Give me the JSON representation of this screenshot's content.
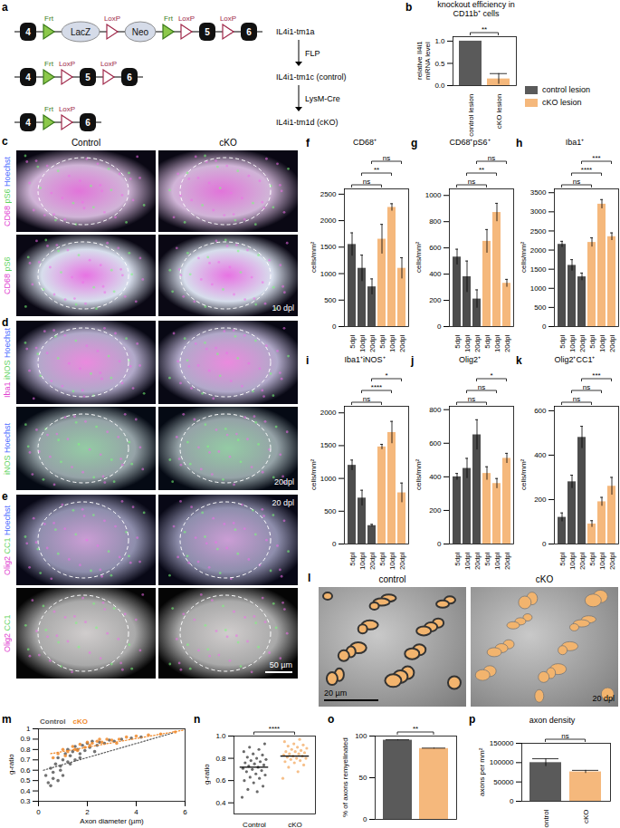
{
  "diagram": {
    "panel": "a",
    "rows": [
      {
        "name": "IL4i1-tm1a",
        "elements": [
          {
            "kind": "exon",
            "label": "4"
          },
          {
            "kind": "frt",
            "label": "Frt"
          },
          {
            "kind": "cassette",
            "label": "LacZ"
          },
          {
            "kind": "loxp",
            "label": "LoxP"
          },
          {
            "kind": "cassette",
            "label": "Neo"
          },
          {
            "kind": "frt",
            "label": "Frt"
          },
          {
            "kind": "loxp",
            "label": "LoxP"
          },
          {
            "kind": "exon",
            "label": "5"
          },
          {
            "kind": "loxp",
            "label": "LoxP"
          },
          {
            "kind": "exon",
            "label": "6"
          }
        ]
      },
      {
        "name": "IL4i1-tm1c (control)",
        "step": "FLP",
        "elements": [
          {
            "kind": "exon",
            "label": "4"
          },
          {
            "kind": "frt",
            "label": "Frt"
          },
          {
            "kind": "loxp",
            "label": "LoxP"
          },
          {
            "kind": "exon",
            "label": "5"
          },
          {
            "kind": "loxp",
            "label": "LoxP"
          },
          {
            "kind": "exon",
            "label": "6"
          }
        ]
      },
      {
        "name": "IL4i1-tm1d (cKO)",
        "step": "LysM-Cre",
        "elements": [
          {
            "kind": "exon",
            "label": "4"
          },
          {
            "kind": "frt",
            "label": "Frt"
          },
          {
            "kind": "loxp",
            "label": "LoxP"
          },
          {
            "kind": "exon",
            "label": "6"
          }
        ]
      }
    ]
  },
  "images": [
    {
      "panel": "c",
      "columns": [
        "Control",
        "cKO"
      ],
      "rows": [
        {
          "channels": [
            {
              "text": "CD68",
              "color": "#e040d0"
            },
            {
              "text": "pS6",
              "color": "#5fd35f"
            },
            {
              "text": "Hoechst",
              "color": "#4a6cff"
            }
          ]
        },
        {
          "channels": [
            {
              "text": "CD68",
              "color": "#e040d0"
            },
            {
              "text": "pS6",
              "color": "#5fd35f"
            }
          ],
          "annotation": "10 dpl"
        }
      ]
    },
    {
      "panel": "d",
      "rows": [
        {
          "channels": [
            {
              "text": "Iba1",
              "color": "#e040d0"
            },
            {
              "text": "iNOS",
              "color": "#5fd35f"
            },
            {
              "text": "Hoechst",
              "color": "#4a6cff"
            }
          ]
        },
        {
          "channels": [
            {
              "text": "iNOS",
              "color": "#5fd35f"
            },
            {
              "text": "Hoechst",
              "color": "#4a6cff"
            }
          ],
          "annotation": "20dpl"
        }
      ]
    },
    {
      "panel": "e",
      "rows": [
        {
          "channels": [
            {
              "text": "Olig2",
              "color": "#e040d0"
            },
            {
              "text": "CC1",
              "color": "#5fd35f"
            },
            {
              "text": "Hoechst",
              "color": "#4a6cff"
            }
          ],
          "annotation": "20 dpl"
        },
        {
          "channels": [
            {
              "text": "Olig2",
              "color": "#e040d0"
            },
            {
              "text": "CC1",
              "color": "#5fd35f"
            }
          ],
          "scale_bar": "50 µm"
        }
      ]
    },
    {
      "panel": "l",
      "columns": [
        "control",
        "cKO"
      ],
      "scale_bar": "20 µm",
      "annotation": "20 dpl"
    }
  ],
  "chart_data": [
    {
      "panel": "b",
      "type": "bar",
      "title": "knockout efficiency in CD11b⁺ cells",
      "y_label": "relative Il4i1 mRNA level",
      "categories": [
        "control lesion",
        "cKO lesion"
      ],
      "values": [
        1.0,
        0.15
      ],
      "errors": [
        0,
        0.12
      ],
      "colors": [
        "#5a5a5a",
        "#f5b87c"
      ],
      "ylim": [
        0,
        1.1
      ],
      "yticks": [
        {
          "value": 0,
          "label": "0.0"
        },
        {
          "value": 0.5,
          "label": "0.5"
        },
        {
          "value": 1,
          "label": "1.0"
        }
      ],
      "comparisons": [
        {
          "from": 0,
          "to": 1,
          "label": "**"
        }
      ],
      "legend": "right"
    },
    {
      "panel": "f",
      "type": "bar",
      "title": "CD68⁺",
      "y_label": "cells/mm²",
      "categories": [
        "5dpl",
        "10dpl",
        "20dpl",
        "5dpl",
        "10dpl",
        "20dpl"
      ],
      "values": [
        1550,
        1100,
        750,
        1650,
        2250,
        1100
      ],
      "errors": [
        220,
        250,
        150,
        280,
        70,
        200
      ],
      "colors": [
        "#4d4d4d",
        "#4d4d4d",
        "#4d4d4d",
        "#f5b87c",
        "#f5b87c",
        "#f5b87c"
      ],
      "ylim": [
        0,
        2600
      ],
      "yticks": [
        0,
        500,
        1000,
        1500,
        2000,
        2500
      ],
      "comparisons": [
        {
          "from": 0,
          "to": 3,
          "label": "ns"
        },
        {
          "from": 1,
          "to": 4,
          "label": "**"
        },
        {
          "from": 2,
          "to": 5,
          "label": "ns"
        }
      ]
    },
    {
      "panel": "g",
      "type": "bar",
      "title": "CD68⁺pS6⁺",
      "y_label": "cells/mm²",
      "categories": [
        "5dpl",
        "10dpl",
        "20dpl",
        "5dpl",
        "10dpl",
        "20dpl"
      ],
      "values": [
        530,
        380,
        210,
        650,
        870,
        330
      ],
      "errors": [
        60,
        120,
        70,
        90,
        70,
        30
      ],
      "colors": [
        "#4d4d4d",
        "#4d4d4d",
        "#4d4d4d",
        "#f5b87c",
        "#f5b87c",
        "#f5b87c"
      ],
      "ylim": [
        0,
        1050
      ],
      "yticks": [
        0,
        200,
        400,
        600,
        800,
        1000
      ],
      "comparisons": [
        {
          "from": 0,
          "to": 3,
          "label": "ns"
        },
        {
          "from": 1,
          "to": 4,
          "label": "**"
        },
        {
          "from": 2,
          "to": 5,
          "label": "ns"
        }
      ]
    },
    {
      "panel": "h",
      "type": "bar",
      "title": "Iba1⁺",
      "y_label": "cells/mm²",
      "categories": [
        "5dpl",
        "10dpl",
        "20dpl",
        "5dpl",
        "10dpl",
        "20dpl"
      ],
      "values": [
        2150,
        1600,
        1300,
        2200,
        3200,
        2350
      ],
      "errors": [
        80,
        150,
        100,
        120,
        120,
        100
      ],
      "colors": [
        "#4d4d4d",
        "#4d4d4d",
        "#4d4d4d",
        "#f5b87c",
        "#f5b87c",
        "#f5b87c"
      ],
      "ylim": [
        0,
        3600
      ],
      "yticks": [
        0,
        500,
        1000,
        1500,
        2000,
        2500,
        3000,
        3500
      ],
      "comparisons": [
        {
          "from": 0,
          "to": 3,
          "label": "ns"
        },
        {
          "from": 1,
          "to": 4,
          "label": "****"
        },
        {
          "from": 2,
          "to": 5,
          "label": "***"
        }
      ]
    },
    {
      "panel": "i",
      "type": "bar",
      "title": "Iba1⁺iNOS⁺",
      "y_label": "cells/mm²",
      "categories": [
        "5dpl",
        "10dpl",
        "20dpl",
        "5dpl",
        "10dpl",
        "20dpl"
      ],
      "values": [
        1200,
        700,
        280,
        1480,
        1700,
        780
      ],
      "errors": [
        80,
        120,
        20,
        40,
        170,
        150
      ],
      "colors": [
        "#4d4d4d",
        "#4d4d4d",
        "#4d4d4d",
        "#f5b87c",
        "#f5b87c",
        "#f5b87c"
      ],
      "ylim": [
        0,
        2100
      ],
      "yticks": [
        0,
        500,
        1000,
        1500,
        2000
      ],
      "comparisons": [
        {
          "from": 0,
          "to": 3,
          "label": "ns"
        },
        {
          "from": 1,
          "to": 4,
          "label": "****"
        },
        {
          "from": 2,
          "to": 5,
          "label": "*"
        }
      ]
    },
    {
      "panel": "j",
      "type": "bar",
      "title": "Olig2⁺",
      "y_label": "cells/mm²",
      "categories": [
        "5dpl",
        "10dpl",
        "20dpl",
        "5dpl",
        "10dpl",
        "20dpl"
      ],
      "values": [
        400,
        450,
        650,
        420,
        360,
        510
      ],
      "errors": [
        20,
        60,
        90,
        40,
        30,
        30
      ],
      "colors": [
        "#4d4d4d",
        "#4d4d4d",
        "#4d4d4d",
        "#f5b87c",
        "#f5b87c",
        "#f5b87c"
      ],
      "ylim": [
        0,
        820
      ],
      "yticks": [
        0,
        200,
        400,
        600,
        800
      ],
      "comparisons": [
        {
          "from": 0,
          "to": 3,
          "label": "ns"
        },
        {
          "from": 1,
          "to": 4,
          "label": "ns"
        },
        {
          "from": 2,
          "to": 5,
          "label": "*"
        }
      ]
    },
    {
      "panel": "k",
      "type": "bar",
      "title": "Olig2⁺CC1⁺",
      "y_label": "cells/mm²",
      "categories": [
        "5dpl",
        "10dpl",
        "20dpl",
        "5dpl",
        "10dpl",
        "20dpl"
      ],
      "values": [
        120,
        280,
        480,
        90,
        190,
        260
      ],
      "errors": [
        20,
        30,
        50,
        15,
        20,
        40
      ],
      "colors": [
        "#4d4d4d",
        "#4d4d4d",
        "#4d4d4d",
        "#f5b87c",
        "#f5b87c",
        "#f5b87c"
      ],
      "ylim": [
        0,
        620
      ],
      "yticks": [
        0,
        200,
        400,
        600
      ],
      "comparisons": [
        {
          "from": 0,
          "to": 3,
          "label": "ns"
        },
        {
          "from": 1,
          "to": 4,
          "label": "ns"
        },
        {
          "from": 2,
          "to": 5,
          "label": "***"
        }
      ]
    },
    {
      "panel": "m",
      "type": "scatter",
      "x_label": "Axon diameter (µm)",
      "y_label": "g-ratio",
      "xlim": [
        0,
        6
      ],
      "xticks": [
        0,
        2,
        4,
        6
      ],
      "ylim": [
        0.3,
        1
      ],
      "yticks": [
        0.3,
        0.4,
        0.5,
        0.6,
        0.7,
        0.8,
        0.9,
        1
      ],
      "legend": "top-left",
      "series": [
        {
          "name": "Control",
          "color": "#5a5a5a",
          "marker": "circle",
          "line_style": "dotted",
          "x": [
            0.3,
            0.4,
            0.5,
            0.5,
            0.6,
            0.7,
            0.8,
            0.8,
            0.9,
            1.0,
            1.0,
            1.1,
            1.2,
            1.2,
            1.3,
            1.4,
            1.5,
            1.5,
            1.6,
            1.7,
            1.8,
            1.9,
            2.0,
            2.1,
            2.2,
            2.4,
            2.5,
            2.7,
            2.9,
            3.1,
            3.4,
            3.8,
            4.2,
            0.6,
            0.9,
            1.3,
            1.7,
            2.3
          ],
          "y": [
            0.55,
            0.48,
            0.62,
            0.45,
            0.58,
            0.66,
            0.5,
            0.72,
            0.64,
            0.7,
            0.55,
            0.76,
            0.68,
            0.8,
            0.74,
            0.78,
            0.7,
            0.83,
            0.8,
            0.76,
            0.84,
            0.79,
            0.86,
            0.82,
            0.88,
            0.84,
            0.87,
            0.86,
            0.89,
            0.88,
            0.9,
            0.91,
            0.92,
            0.52,
            0.6,
            0.66,
            0.72,
            0.78
          ],
          "fit_x": [
            0.2,
            5.5
          ],
          "fit_y": [
            0.6,
            0.96
          ]
        },
        {
          "name": "cKO",
          "color": "#f08a2c",
          "marker": "circle",
          "line_style": "dotted",
          "x": [
            0.6,
            0.8,
            1.0,
            1.2,
            1.4,
            1.5,
            1.7,
            1.9,
            2.0,
            2.2,
            2.4,
            2.6,
            2.8,
            3.0,
            3.3,
            3.6,
            4.0,
            4.5,
            5.0,
            5.6,
            1.1,
            1.6,
            2.1,
            2.5,
            3.2
          ],
          "y": [
            0.72,
            0.76,
            0.8,
            0.78,
            0.83,
            0.8,
            0.85,
            0.82,
            0.87,
            0.86,
            0.88,
            0.87,
            0.9,
            0.89,
            0.9,
            0.92,
            0.93,
            0.94,
            0.95,
            0.97,
            0.74,
            0.79,
            0.84,
            0.9,
            0.86
          ],
          "fit_x": [
            0.5,
            6
          ],
          "fit_y": [
            0.76,
            0.99
          ]
        }
      ]
    },
    {
      "panel": "n",
      "type": "strip",
      "y_label": "g-ratio",
      "categories": [
        "Control",
        "cKO"
      ],
      "colors": [
        "#5a5a5a",
        "#f5b87c"
      ],
      "points": [
        [
          0.45,
          0.5,
          0.52,
          0.55,
          0.58,
          0.6,
          0.62,
          0.63,
          0.65,
          0.66,
          0.68,
          0.69,
          0.7,
          0.71,
          0.72,
          0.73,
          0.74,
          0.75,
          0.76,
          0.77,
          0.78,
          0.79,
          0.8,
          0.81,
          0.83,
          0.84,
          0.86,
          0.88,
          0.9,
          0.93
        ],
        [
          0.62,
          0.68,
          0.72,
          0.74,
          0.76,
          0.77,
          0.78,
          0.79,
          0.8,
          0.8,
          0.81,
          0.82,
          0.82,
          0.83,
          0.84,
          0.84,
          0.85,
          0.86,
          0.86,
          0.87,
          0.88,
          0.89,
          0.9,
          0.91,
          0.92,
          0.93,
          0.95,
          0.97
        ]
      ],
      "values": [
        0.72,
        0.82
      ],
      "ylim": [
        0.3,
        1
      ],
      "yticks": [
        0.4,
        0.6,
        0.8,
        {
          "value": 1,
          "label": "1.0"
        }
      ],
      "comparisons": [
        {
          "from": 0,
          "to": 1,
          "label": "****"
        }
      ]
    },
    {
      "panel": "o",
      "type": "bar",
      "y_label": "% of axons remyelinated",
      "categories": [
        null,
        null
      ],
      "values": [
        95,
        85
      ],
      "errors": [
        0.5,
        0.5
      ],
      "colors": [
        "#5a5a5a",
        "#f5b87c"
      ],
      "ylim": [
        0,
        100
      ],
      "yticks": [
        0,
        50,
        100
      ],
      "comparisons": [
        {
          "from": 0,
          "to": 1,
          "label": "**"
        }
      ]
    },
    {
      "panel": "p",
      "type": "bar",
      "title": "axon density",
      "y_label": "axons per mm²",
      "categories": [
        "control",
        "cKO"
      ],
      "values": [
        100000,
        76000
      ],
      "errors": [
        10000,
        4000
      ],
      "colors": [
        "#5a5a5a",
        "#f5b87c"
      ],
      "ylim": [
        0,
        150000
      ],
      "yticks": [
        0,
        50000,
        100000,
        150000
      ],
      "comparisons": [
        {
          "from": 0,
          "to": 1,
          "label": "ns"
        }
      ]
    }
  ]
}
